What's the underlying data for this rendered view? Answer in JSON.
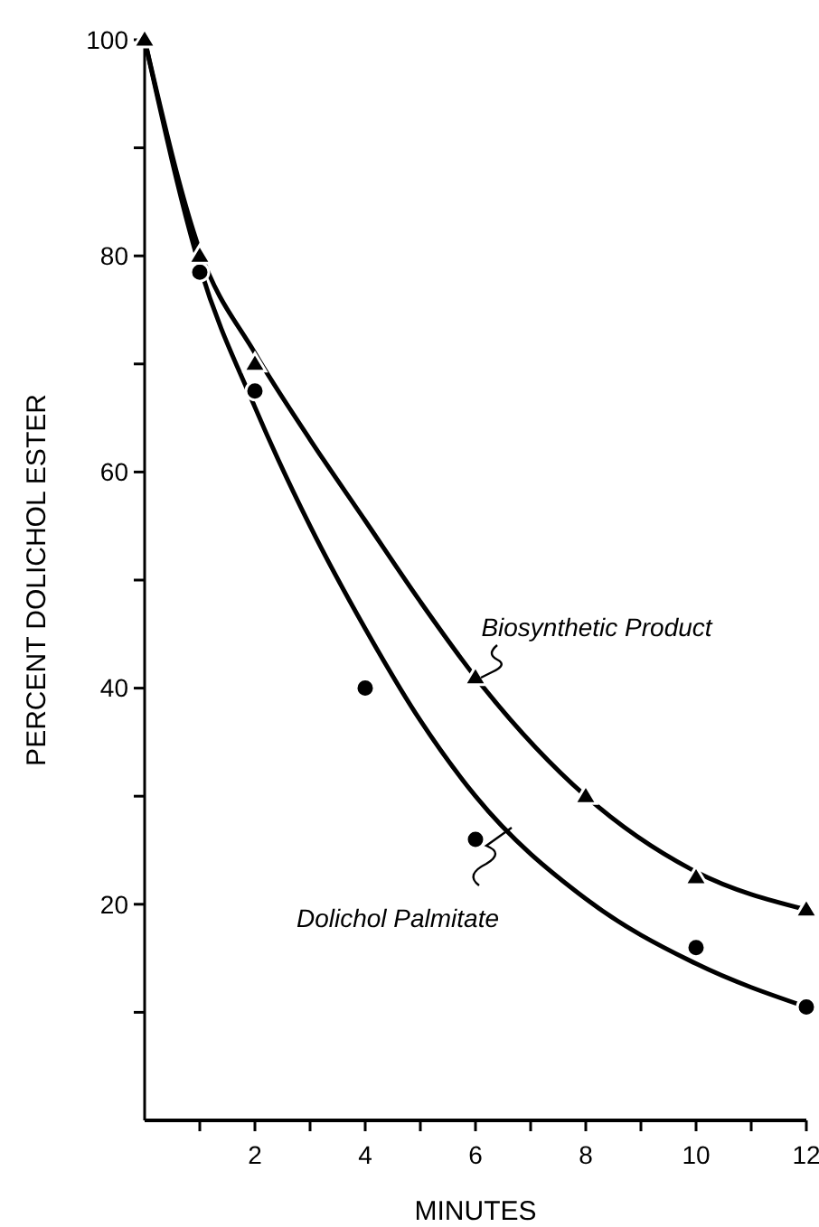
{
  "chart_data": {
    "type": "scatter",
    "xlabel": "MINUTES",
    "ylabel": "PERCENT DOLICHOL ESTER",
    "xlim": [
      0,
      12
    ],
    "ylim": [
      0,
      100
    ],
    "xticks": [
      {
        "value": 1,
        "label": null
      },
      2,
      {
        "value": 3,
        "label": null
      },
      4,
      {
        "value": 5,
        "label": null
      },
      6,
      {
        "value": 7,
        "label": null
      },
      8,
      {
        "value": 9,
        "label": null
      },
      10,
      {
        "value": 11,
        "label": null
      },
      12
    ],
    "yticks": [
      {
        "value": 10,
        "label": null
      },
      20,
      {
        "value": 30,
        "label": null
      },
      40,
      {
        "value": 50,
        "label": null
      },
      60,
      {
        "value": 70,
        "label": null
      },
      80,
      {
        "value": 90,
        "label": null
      },
      100
    ],
    "series": [
      {
        "type": "line",
        "color": "#000000",
        "marker": "none",
        "line_style": "solid",
        "x": [
          0,
          1,
          2,
          3,
          4,
          5,
          6,
          8,
          10,
          12
        ],
        "values": [
          100,
          79,
          66,
          55,
          45.5,
          37,
          30,
          20.5,
          14.5,
          10.5
        ]
      },
      {
        "type": "line",
        "color": "#000000",
        "marker": "none",
        "line_style": "solid",
        "x": [
          0,
          1,
          2,
          3,
          4,
          5,
          6,
          8,
          10,
          12
        ],
        "values": [
          100,
          80.5,
          71,
          63,
          55.5,
          48,
          41,
          30,
          23,
          19.5
        ]
      },
      {
        "name": "Dolichol Palmitate",
        "color": "#000000",
        "marker": "circle",
        "x": [
          1,
          2,
          4,
          6,
          10,
          12
        ],
        "values": [
          78.5,
          67.5,
          40,
          26,
          16,
          10.5
        ]
      },
      {
        "name": "Biosynthetic Product",
        "color": "#000000",
        "marker": "triangle",
        "x": [
          0,
          1,
          2,
          6,
          8,
          10,
          12
        ],
        "values": [
          100,
          80,
          70,
          41,
          30,
          22.5,
          19.5
        ]
      }
    ]
  }
}
